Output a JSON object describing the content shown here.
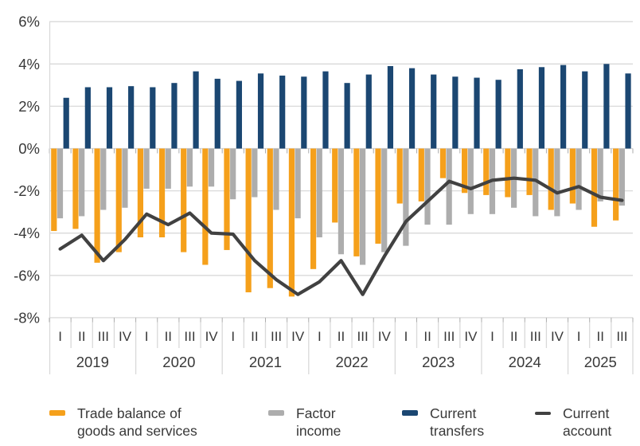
{
  "chart": {
    "y_axis": {
      "tick_labels": [
        "6%",
        "4%",
        "2%",
        "0%",
        "-2%",
        "-4%",
        "-6%",
        "-8%"
      ]
    }
  },
  "chart_data": {
    "type": "combo",
    "title": "",
    "ylim": [
      -8,
      6
    ],
    "y_tick_step": 2,
    "y_tick_suffix": "%",
    "grid": true,
    "legend_position": "bottom",
    "x_groups": [
      {
        "year": "2019",
        "quarters": [
          "I",
          "II",
          "III",
          "IV"
        ]
      },
      {
        "year": "2020",
        "quarters": [
          "I",
          "II",
          "III",
          "IV"
        ]
      },
      {
        "year": "2021",
        "quarters": [
          "I",
          "II",
          "III",
          "IV"
        ]
      },
      {
        "year": "2022",
        "quarters": [
          "I",
          "II",
          "III",
          "IV"
        ]
      },
      {
        "year": "2023",
        "quarters": [
          "I",
          "II",
          "III",
          "IV"
        ]
      },
      {
        "year": "2024",
        "quarters": [
          "I",
          "II",
          "III",
          "IV"
        ]
      },
      {
        "year": "2025",
        "quarters": [
          "I",
          "II",
          "III"
        ]
      }
    ],
    "series": [
      {
        "name": "Trade balance of goods and services",
        "type": "bar",
        "color": "#F5A01B",
        "values": [
          -3.9,
          -3.8,
          -5.4,
          -4.9,
          -4.2,
          -4.2,
          -4.9,
          -5.5,
          -4.8,
          -6.8,
          -6.6,
          -7.0,
          -5.7,
          -3.5,
          -5.1,
          -4.5,
          -2.6,
          -2.5,
          -1.4,
          -2.1,
          -2.2,
          -2.3,
          -2.2,
          -2.9,
          -2.6,
          -3.7,
          -3.4
        ]
      },
      {
        "name": "Factor income",
        "type": "bar",
        "color": "#ADADAD",
        "values": [
          -3.3,
          -3.2,
          -2.9,
          -2.8,
          -1.9,
          -1.9,
          -1.8,
          -1.8,
          -2.4,
          -2.3,
          -2.9,
          -3.3,
          -4.2,
          -5.0,
          -5.5,
          -4.9,
          -4.6,
          -3.6,
          -3.6,
          -3.1,
          -3.1,
          -2.8,
          -3.2,
          -3.2,
          -2.9,
          -2.5,
          -2.7
        ]
      },
      {
        "name": "Current transfers",
        "type": "bar",
        "color": "#1B4772",
        "values": [
          2.4,
          2.9,
          2.9,
          2.95,
          2.9,
          3.1,
          3.65,
          3.3,
          3.2,
          3.55,
          3.45,
          3.4,
          3.65,
          3.1,
          3.5,
          3.9,
          3.8,
          3.5,
          3.4,
          3.35,
          3.25,
          3.75,
          3.85,
          3.95,
          3.65,
          4.0,
          3.55
        ]
      },
      {
        "name": "Current account",
        "type": "line",
        "color": "#414141",
        "values": [
          -4.75,
          -4.1,
          -5.3,
          -4.3,
          -3.1,
          -3.6,
          -3.05,
          -4.0,
          -4.05,
          -5.3,
          -6.2,
          -6.9,
          -6.3,
          -5.3,
          -6.9,
          -5.1,
          -3.45,
          -2.5,
          -1.55,
          -1.9,
          -1.5,
          -1.4,
          -1.5,
          -2.1,
          -1.8,
          -2.3,
          -2.45
        ]
      }
    ],
    "style": {
      "gridline_color": "#D9D9D9",
      "axis_tick_color": "#ABABAB",
      "text_color": "#383838"
    }
  },
  "legend": {
    "items": [
      {
        "line1": "Trade balance of",
        "line2": "goods and services"
      },
      {
        "line1": "Factor",
        "line2": "income"
      },
      {
        "line1": "Current",
        "line2": "transfers"
      },
      {
        "line1": "Current",
        "line2": "account"
      }
    ]
  }
}
